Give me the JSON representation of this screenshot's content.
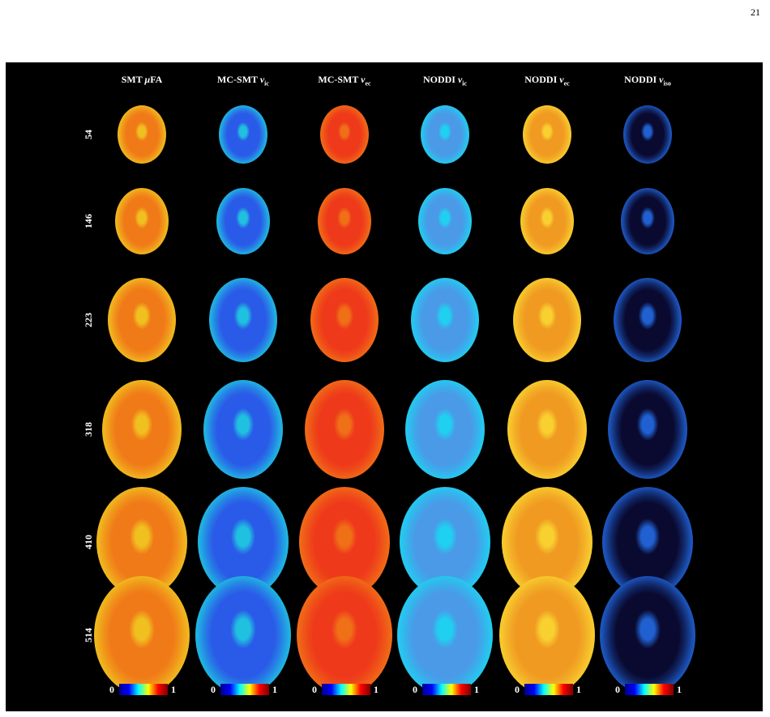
{
  "page_number": "21",
  "columns": [
    {
      "main": "SMT ",
      "ital": "μ",
      "sym": "FA",
      "sub": ""
    },
    {
      "main": "MC-SMT ",
      "ital": "",
      "sym": "v",
      "sub": "ic"
    },
    {
      "main": "MC-SMT ",
      "ital": "",
      "sym": "v",
      "sub": "ec"
    },
    {
      "main": "NODDI ",
      "ital": "",
      "sym": "v",
      "sub": "ic"
    },
    {
      "main": "NODDI ",
      "ital": "",
      "sym": "v",
      "sub": "ec"
    },
    {
      "main": "NODDI ",
      "ital": "",
      "sym": "v",
      "sub": "iso"
    }
  ],
  "rows": [
    "54",
    "146",
    "223",
    "318",
    "410",
    "514"
  ],
  "colorbar": {
    "min": "0",
    "max": "1"
  },
  "colors": {
    "background": "#000000",
    "jet": [
      "#00008f",
      "#0000ff",
      "#00ffff",
      "#ffff00",
      "#ff0000",
      "#800000"
    ],
    "map_tint": [
      "#f07a18",
      "#2a5ae8",
      "#ee3a1a",
      "#4a9ae8",
      "#f09a22",
      "#0a0a30"
    ],
    "map_rim": [
      "#f0c020",
      "#20c0e0",
      "#f07018",
      "#20d0f0",
      "#f8d030",
      "#2060d0"
    ]
  }
}
